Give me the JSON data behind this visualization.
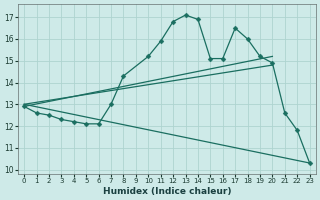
{
  "xlabel": "Humidex (Indice chaleur)",
  "bg_color": "#ceeae8",
  "grid_color": "#aed4d0",
  "line_color": "#1a6e60",
  "xlim": [
    -0.5,
    23.5
  ],
  "ylim": [
    9.8,
    17.6
  ],
  "yticks": [
    10,
    11,
    12,
    13,
    14,
    15,
    16,
    17
  ],
  "xticks": [
    0,
    1,
    2,
    3,
    4,
    5,
    6,
    7,
    8,
    9,
    10,
    11,
    12,
    13,
    14,
    15,
    16,
    17,
    18,
    19,
    20,
    21,
    22,
    23
  ],
  "main_x": [
    0,
    1,
    2,
    3,
    4,
    5,
    6,
    7,
    8,
    10,
    11,
    12,
    13,
    14,
    15,
    16,
    17,
    18,
    19,
    20,
    21,
    22,
    23
  ],
  "main_y": [
    12.9,
    12.6,
    12.5,
    12.3,
    12.2,
    12.1,
    12.1,
    13.0,
    14.3,
    15.2,
    15.9,
    16.8,
    17.1,
    16.9,
    15.1,
    15.1,
    16.5,
    16.0,
    15.2,
    14.9,
    12.6,
    11.8,
    10.3
  ],
  "trend1_x": [
    0,
    20
  ],
  "trend1_y": [
    12.9,
    15.2
  ],
  "trend2_x": [
    0,
    20
  ],
  "trend2_y": [
    13.0,
    14.8
  ],
  "trend3_x": [
    0,
    23
  ],
  "trend3_y": [
    13.0,
    10.3
  ]
}
